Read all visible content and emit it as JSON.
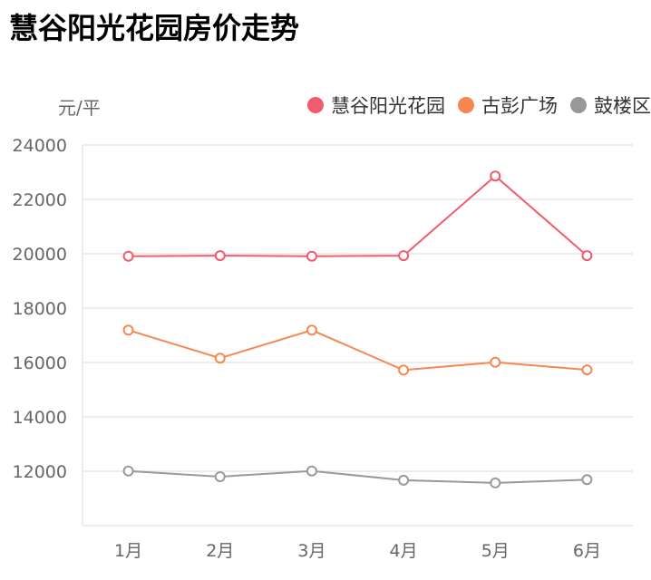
{
  "chart_data": {
    "type": "line",
    "title": "慧谷阳光花园房价走势",
    "ylabel": "元/平",
    "categories": [
      "1月",
      "2月",
      "3月",
      "4月",
      "5月",
      "6月"
    ],
    "ylim": [
      10000,
      24000
    ],
    "yticks": [
      "12000",
      "14000",
      "16000",
      "18000",
      "20000",
      "22000",
      "24000"
    ],
    "grid": true,
    "legend_position": "top-right",
    "series": [
      {
        "name": "慧谷阳光花园",
        "color": "#f25a6e",
        "values": [
          19910,
          19930,
          19910,
          19930,
          22860,
          19930
        ]
      },
      {
        "name": "古彭广场",
        "color": "#f5874f",
        "values": [
          17190,
          16160,
          17190,
          15720,
          16010,
          15730
        ]
      },
      {
        "name": "鼓楼区",
        "color": "#999999",
        "values": [
          12010,
          11800,
          12010,
          11670,
          11570,
          11690
        ]
      }
    ]
  }
}
